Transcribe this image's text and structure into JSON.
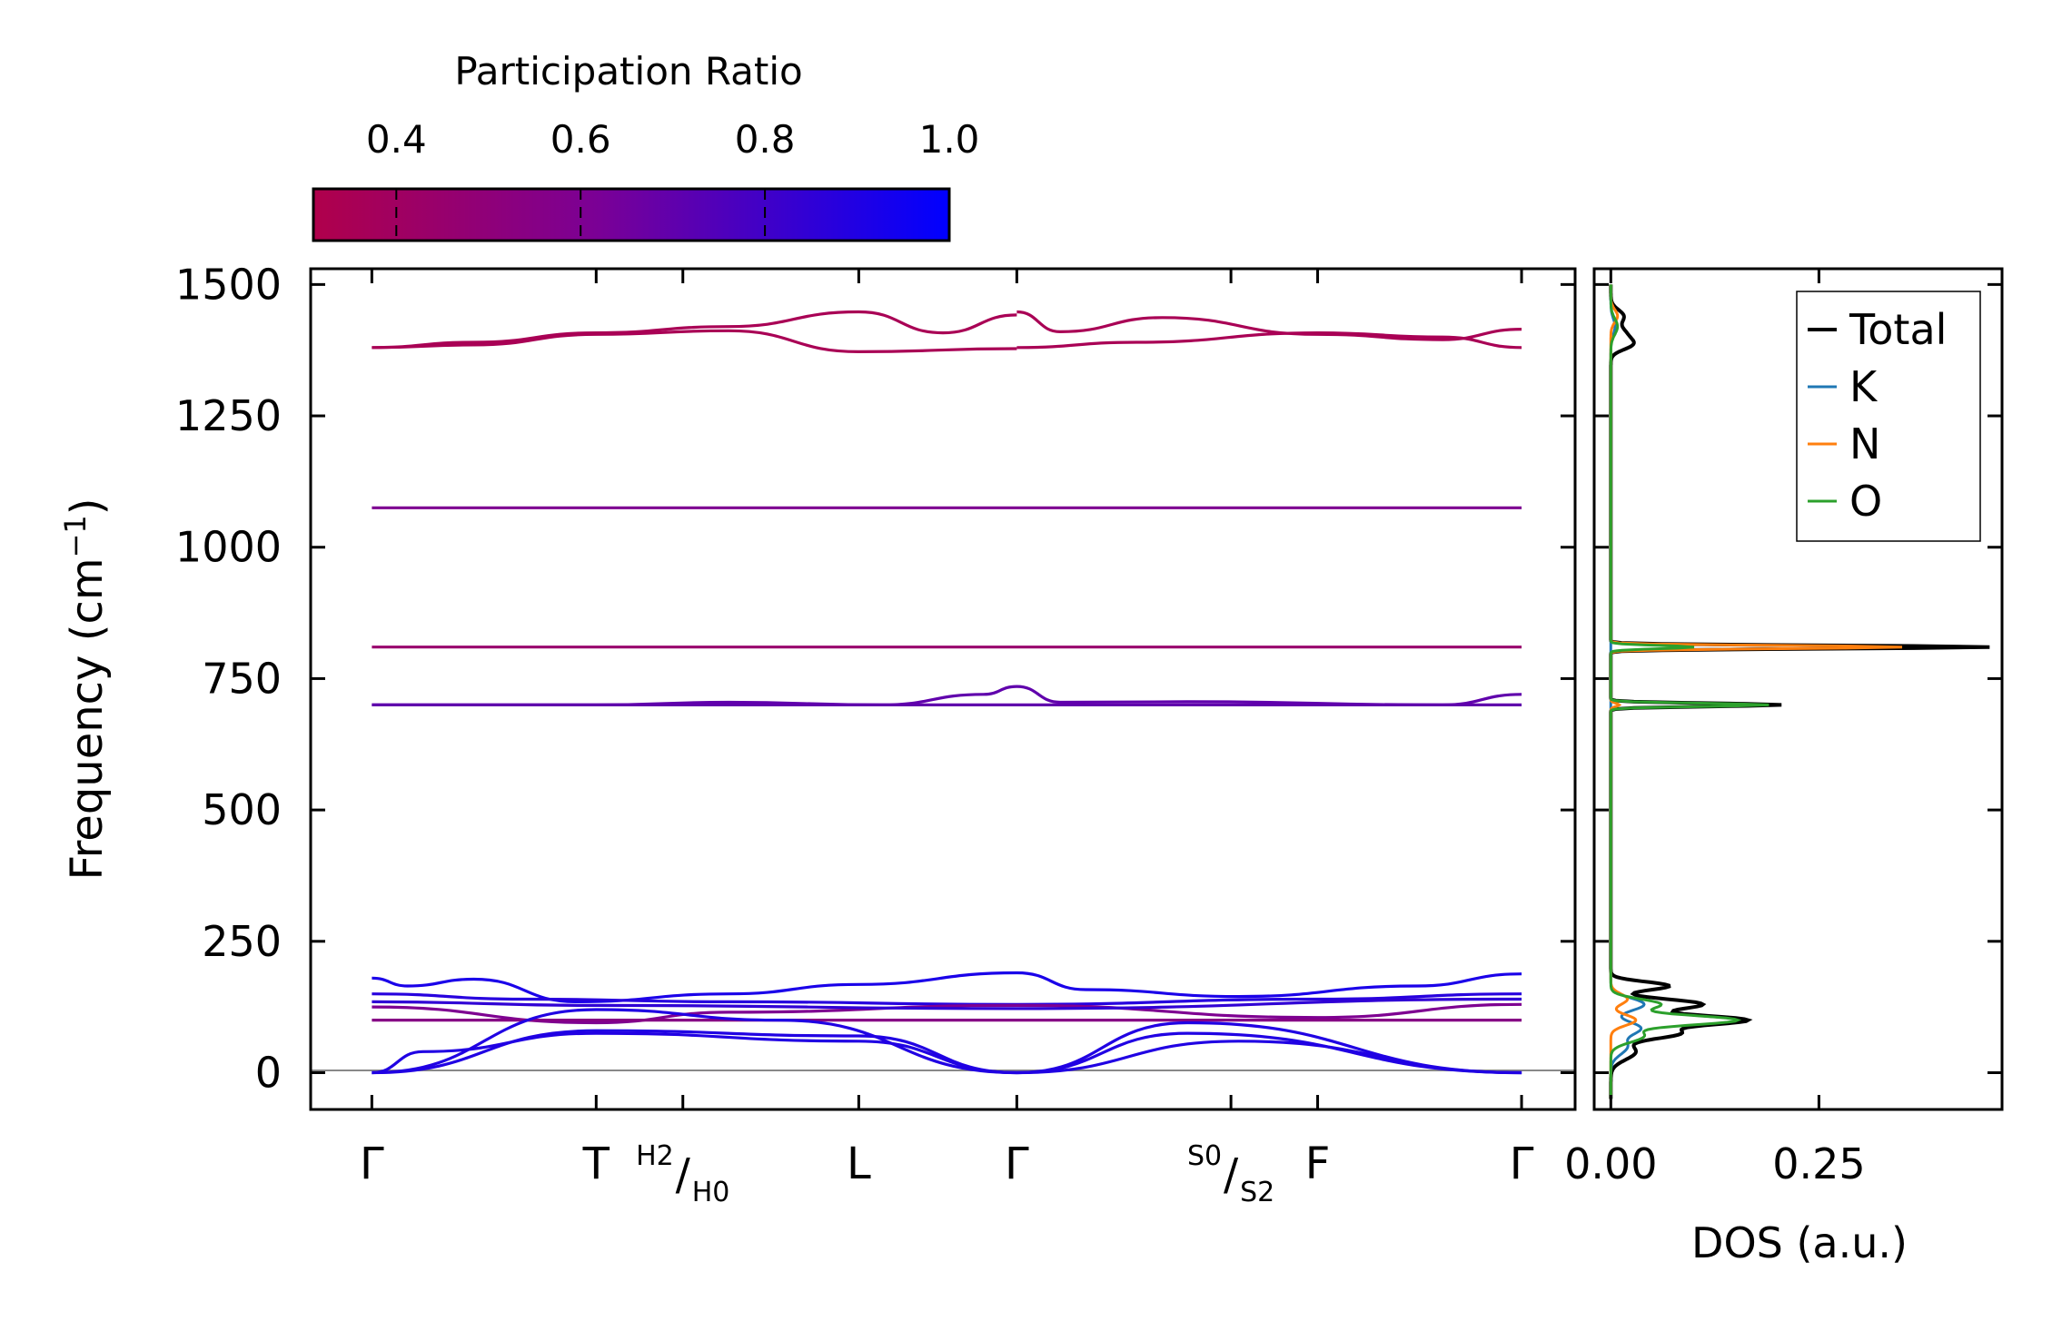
{
  "colorbar": {
    "label": "Participation Ratio",
    "range": [
      0.31,
      1.0
    ],
    "ticks": [
      0.4,
      0.6,
      0.8,
      1.0
    ],
    "tick_labels": [
      "0.4",
      "0.6",
      "0.8",
      "1.0"
    ],
    "color_low": "#b0004b",
    "color_mid": "#7a0096",
    "color_high": "#0000ff"
  },
  "chart_data": [
    {
      "type": "line",
      "name": "phonon-band-structure",
      "ylabel_main": "Frequency (cm",
      "ylabel_sup": "−1",
      "ylabel_close": ")",
      "ylim": [
        -70,
        1530
      ],
      "xlim": [
        -0.12,
        2.36
      ],
      "yticks": [
        0,
        250,
        500,
        750,
        1000,
        1250,
        1500
      ],
      "ytick_labels": [
        "0",
        "250",
        "500",
        "750",
        "1000",
        "1250",
        "1500"
      ],
      "kpoints": [
        {
          "x": 0.0,
          "label": "Γ"
        },
        {
          "x": 0.44,
          "label": "T"
        },
        {
          "x": 0.61,
          "label_top": "H2",
          "label_bottom": "H0"
        },
        {
          "x": 0.955,
          "label": "L"
        },
        {
          "x": 1.265,
          "label": "Γ"
        },
        {
          "x": 1.685,
          "label_top": "S0",
          "label_bottom": "S2"
        },
        {
          "x": 1.855,
          "label": "F"
        },
        {
          "x": 2.255,
          "label": "Γ"
        }
      ],
      "bands": [
        {
          "pr": 0.35,
          "x": [
            0,
            0.2,
            0.44,
            0.7,
            0.955,
            1.265
          ],
          "y": [
            1380,
            1385,
            1405,
            1412,
            1372,
            1378
          ]
        },
        {
          "pr": 0.35,
          "x": [
            0,
            0.2,
            0.44,
            0.7,
            0.955,
            1.12,
            1.265
          ],
          "y": [
            1380,
            1390,
            1408,
            1420,
            1448,
            1408,
            1442
          ]
        },
        {
          "pr": 0.35,
          "x": [
            1.265,
            1.35,
            1.55,
            1.855,
            2.1,
            2.255
          ],
          "y": [
            1448,
            1410,
            1437,
            1405,
            1395,
            1415
          ]
        },
        {
          "pr": 0.35,
          "x": [
            1.265,
            1.5,
            1.855,
            2.1,
            2.255
          ],
          "y": [
            1380,
            1390,
            1408,
            1400,
            1380
          ]
        },
        {
          "pr": 0.6,
          "x": [
            0,
            2.255
          ],
          "y": [
            1075,
            1075
          ]
        },
        {
          "pr": 0.45,
          "x": [
            0,
            2.255
          ],
          "y": [
            810,
            810
          ]
        },
        {
          "pr": 0.7,
          "x": [
            0,
            0.44,
            0.7,
            1.0,
            1.2,
            1.265,
            1.35,
            1.6,
            2.1,
            2.255
          ],
          "y": [
            700,
            700,
            705,
            700,
            720,
            735,
            705,
            706,
            700,
            720
          ]
        },
        {
          "pr": 0.7,
          "x": [
            0,
            2.255
          ],
          "y": [
            700,
            700
          ]
        },
        {
          "pr": 0.92,
          "x": [
            0,
            0.07,
            0.2,
            0.4,
            0.7,
            0.955,
            1.265,
            1.4,
            1.7,
            2.05,
            2.255
          ],
          "y": [
            180,
            165,
            178,
            135,
            150,
            168,
            190,
            158,
            145,
            165,
            188
          ]
        },
        {
          "pr": 0.88,
          "x": [
            0,
            0.3,
            0.7,
            1.265,
            1.855,
            2.255
          ],
          "y": [
            150,
            140,
            135,
            130,
            140,
            150
          ]
        },
        {
          "pr": 0.6,
          "x": [
            0,
            0.44,
            0.7,
            1.265,
            1.855,
            2.255
          ],
          "y": [
            125,
            95,
            115,
            128,
            105,
            130
          ]
        },
        {
          "pr": 0.85,
          "x": [
            0,
            0.44,
            1.265,
            2.255
          ],
          "y": [
            135,
            128,
            122,
            140
          ]
        },
        {
          "pr": 0.55,
          "x": [
            0,
            2.255
          ],
          "y": [
            100,
            100
          ]
        },
        {
          "pr": 0.9,
          "x": [
            0,
            0.1,
            0.44,
            0.955,
            1.265,
            1.6,
            2.255
          ],
          "y": [
            0,
            40,
            75,
            60,
            0,
            75,
            0
          ]
        },
        {
          "pr": 0.9,
          "x": [
            0,
            0.44,
            0.955,
            1.265,
            1.7,
            2.255
          ],
          "y": [
            0,
            80,
            70,
            0,
            60,
            0
          ]
        },
        {
          "pr": 0.9,
          "x": [
            0,
            0.44,
            0.8,
            1.265,
            1.6,
            2.255
          ],
          "y": [
            0,
            120,
            100,
            0,
            95,
            0
          ]
        }
      ]
    },
    {
      "type": "line",
      "name": "phonon-dos",
      "xlabel": "DOS (a.u.)",
      "xlim": [
        -0.02,
        0.47
      ],
      "xticks": [
        0.0,
        0.25
      ],
      "xtick_labels": [
        "0.00",
        "0.25"
      ],
      "legend_position": "top-right",
      "series": [
        {
          "name": "Total",
          "color": "#000000",
          "peaks": [
            [
              1440,
              0.015,
              12
            ],
            [
              1405,
              0.018,
              14
            ],
            [
              1385,
              0.02,
              10
            ],
            [
              810,
              0.455,
              3
            ],
            [
              700,
              0.205,
              3
            ],
            [
              165,
              0.07,
              8
            ],
            [
              130,
              0.11,
              10
            ],
            [
              100,
              0.16,
              9
            ],
            [
              75,
              0.08,
              10
            ],
            [
              40,
              0.03,
              15
            ]
          ]
        },
        {
          "name": "K",
          "color": "#1f77b4",
          "peaks": [
            [
              1420,
              0.005,
              15
            ],
            [
              130,
              0.04,
              12
            ],
            [
              85,
              0.035,
              12
            ],
            [
              50,
              0.02,
              15
            ]
          ]
        },
        {
          "name": "N",
          "color": "#ff7f0e",
          "peaks": [
            [
              1440,
              0.008,
              12
            ],
            [
              810,
              0.35,
              3
            ],
            [
              700,
              0.01,
              3
            ],
            [
              140,
              0.02,
              10
            ],
            [
              100,
              0.03,
              10
            ]
          ]
        },
        {
          "name": "O",
          "color": "#2ca02c",
          "peaks": [
            [
              1420,
              0.008,
              15
            ],
            [
              810,
              0.1,
              3
            ],
            [
              700,
              0.19,
              3
            ],
            [
              130,
              0.06,
              10
            ],
            [
              100,
              0.15,
              9
            ],
            [
              70,
              0.04,
              12
            ]
          ]
        }
      ]
    }
  ]
}
